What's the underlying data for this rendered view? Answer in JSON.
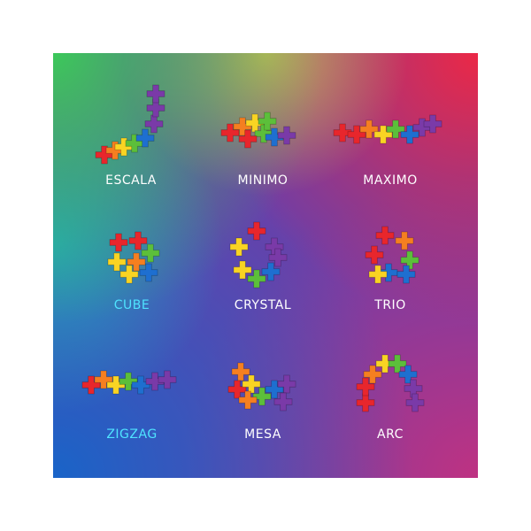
{
  "models": [
    {
      "name": "ESCALA",
      "label_color": "#ffffff"
    },
    {
      "name": "MINIMO",
      "label_color": "#ffffff"
    },
    {
      "name": "MAXIMO",
      "label_color": "#ffffff"
    },
    {
      "name": "CUBE",
      "label_color": "#4fe3ff"
    },
    {
      "name": "CRYSTAL",
      "label_color": "#ffffff"
    },
    {
      "name": "TRIO",
      "label_color": "#ffffff"
    },
    {
      "name": "ZIGZAG",
      "label_color": "#4fe3ff"
    },
    {
      "name": "MESA",
      "label_color": "#ffffff"
    },
    {
      "name": "ARC",
      "label_color": "#ffffff"
    }
  ],
  "brick_colors": [
    "#e8262c",
    "#f57f20",
    "#f9d423",
    "#5cbf3a",
    "#1e6fd0",
    "#7a3aa8"
  ]
}
